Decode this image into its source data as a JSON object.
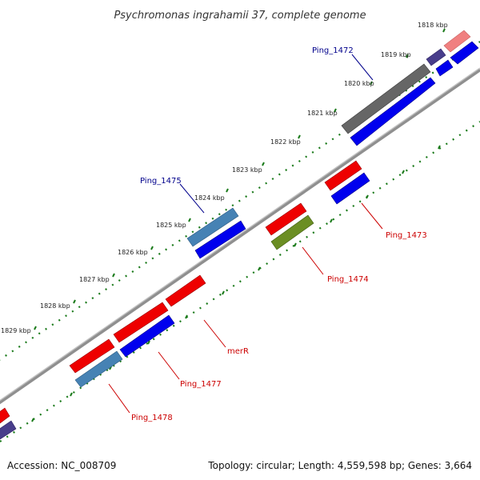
{
  "title": "Psychromonas ingrahamii 37, complete genome",
  "footer": {
    "accession": "Accession: NC_008709",
    "summary": "Topology: circular; Length: 4,559,598 bp; Genes: 3,664"
  },
  "tick_labels": [
    "1818 kbp",
    "1819 kbp",
    "1820 kbp",
    "1821 kbp",
    "1822 kbp",
    "1823 kbp",
    "1824 kbp",
    "1825 kbp",
    "1826 kbp",
    "1827 kbp",
    "1828 kbp",
    "1829 kbp"
  ],
  "gene_labels": {
    "ping_1472": "Ping_1472",
    "ping_1475": "Ping_1475",
    "ping_1473": "Ping_1473",
    "ping_1474": "Ping_1474",
    "merR": "merR",
    "ping_1477": "Ping_1477",
    "ping_1478": "Ping_1478"
  },
  "colors": {
    "backbone": "#8a8a8a",
    "tick_dots": "#1a7a1a",
    "label_blue": "#00008b",
    "label_red": "#cc0000",
    "gene_red": "#ee0000",
    "gene_blue": "#0000ee",
    "gene_steel": "#4682b4",
    "gene_olive": "#6b8e23",
    "gene_gray": "#666666",
    "gene_navy": "#483d8b",
    "gene_pink": "#f08080"
  }
}
